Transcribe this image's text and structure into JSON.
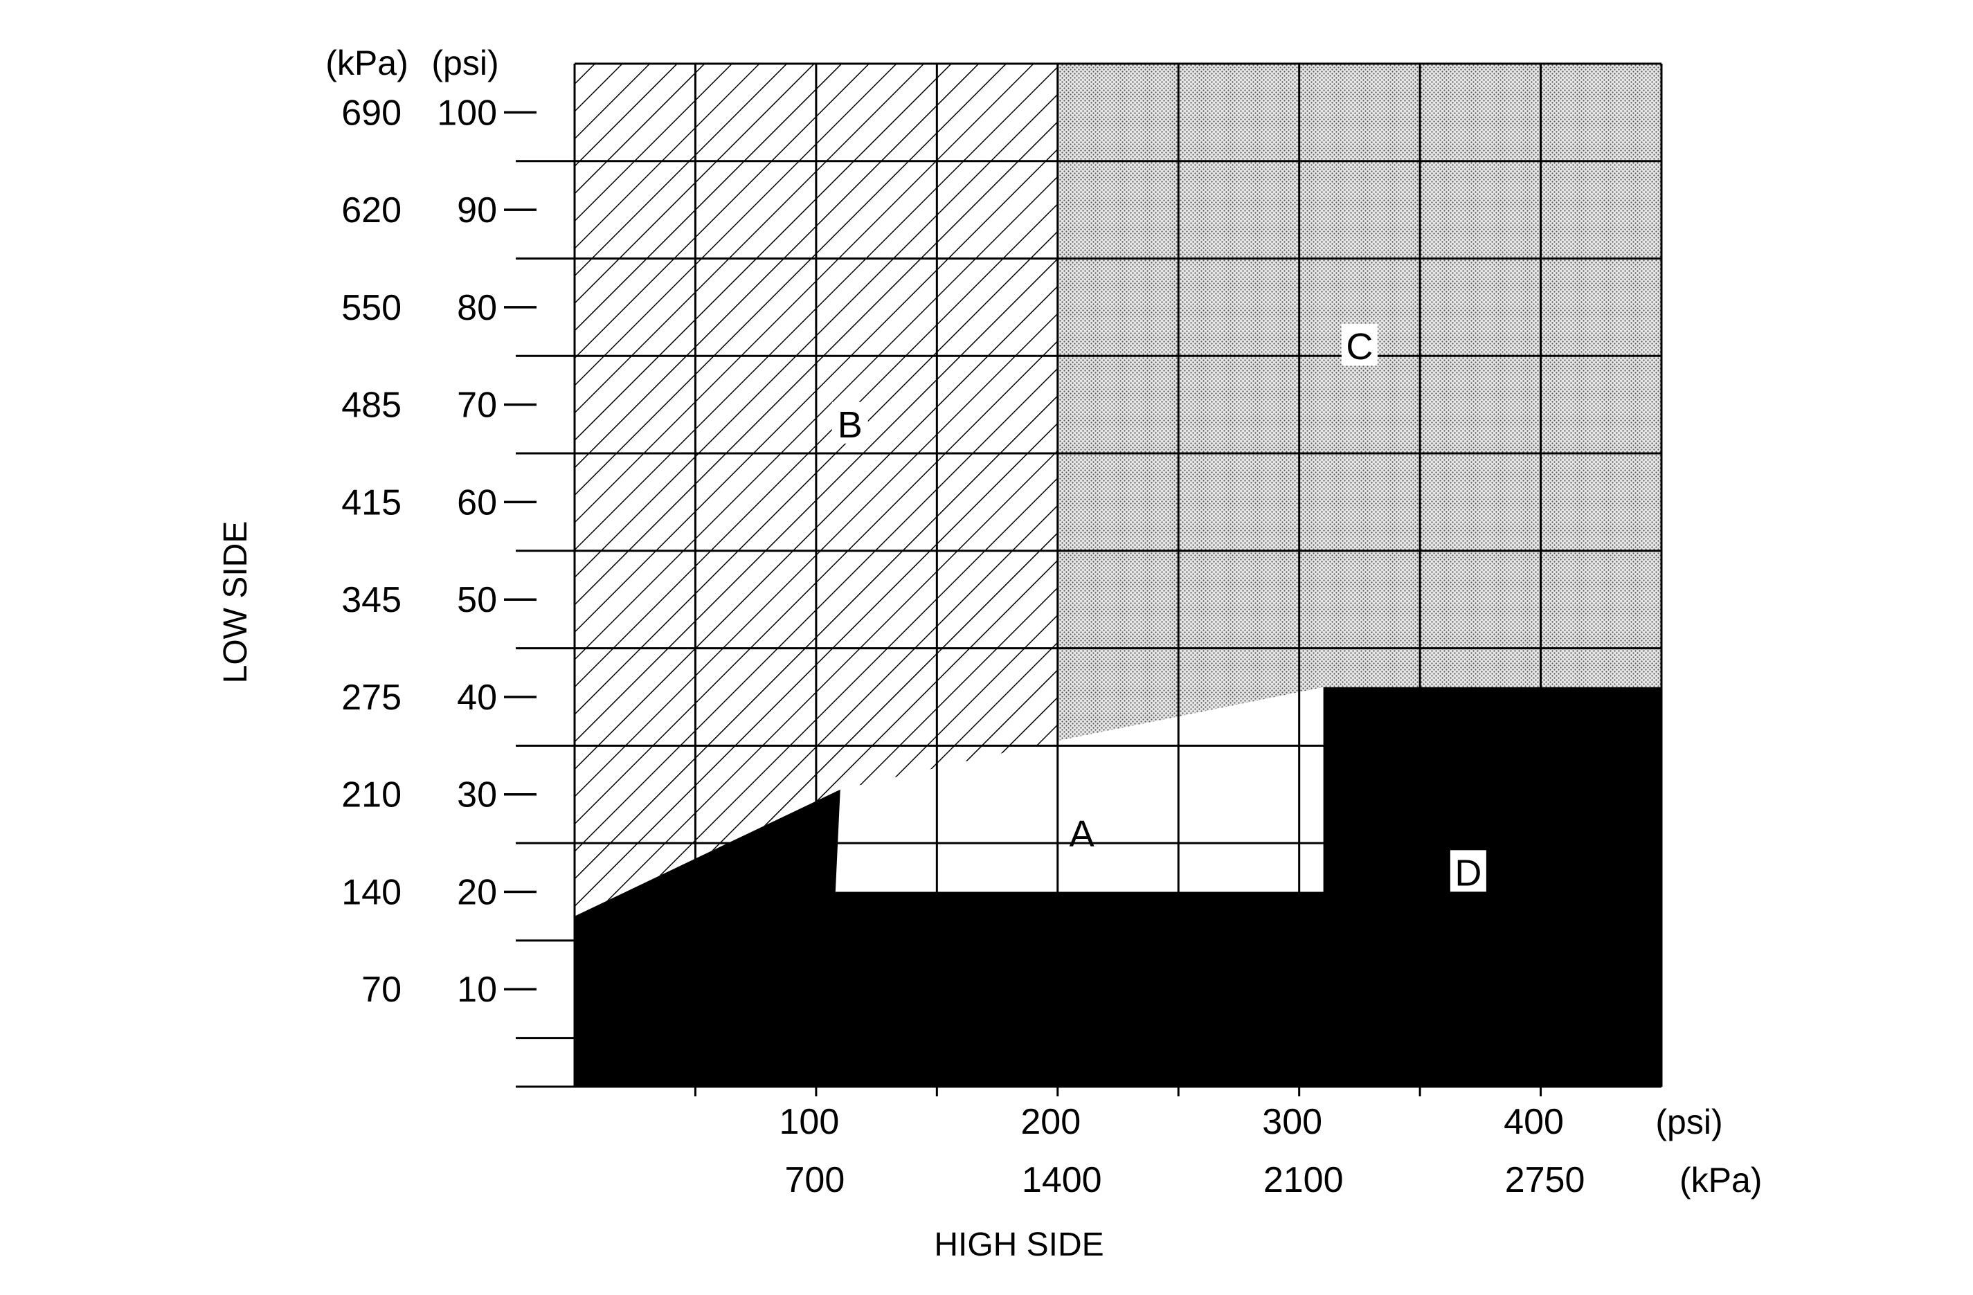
{
  "chart_data": {
    "type": "area",
    "axes": {
      "y": {
        "title": "LOW SIDE",
        "units": {
          "primary": "(psi)",
          "secondary": "(kPa)"
        },
        "ticks_psi": [
          100,
          90,
          80,
          70,
          60,
          50,
          40,
          30,
          20,
          10
        ],
        "ticks_kpa": [
          690,
          620,
          550,
          485,
          415,
          345,
          275,
          210,
          140,
          70
        ],
        "range_psi": [
          0,
          100
        ]
      },
      "x": {
        "title": "HIGH SIDE",
        "units": {
          "primary": "(psi)",
          "secondary": "(kPa)"
        },
        "ticks_psi": [
          100,
          200,
          300,
          400
        ],
        "ticks_kpa": [
          700,
          1400,
          2100,
          2750
        ],
        "range_psi": [
          0,
          450
        ]
      }
    },
    "grid": true,
    "regions": [
      {
        "label": "A",
        "fill": "white",
        "polygon_psi": [
          [
            110,
            30.5
          ],
          [
            200,
            35.5
          ],
          [
            310,
            40.5
          ],
          [
            310,
            20
          ],
          [
            108,
            20
          ]
        ]
      },
      {
        "label": "B",
        "fill": "diagonal-hatch",
        "polygon_psi": [
          [
            0,
            105
          ],
          [
            200,
            105
          ],
          [
            200,
            35.5
          ],
          [
            110,
            30.5
          ],
          [
            0,
            17.5
          ]
        ]
      },
      {
        "label": "C",
        "fill": "stipple",
        "polygon_psi": [
          [
            200,
            105
          ],
          [
            450,
            105
          ],
          [
            450,
            41
          ],
          [
            310,
            41
          ],
          [
            200,
            35.5
          ]
        ]
      },
      {
        "label": "D",
        "fill": "black",
        "polygon_psi": [
          [
            0,
            17.5
          ],
          [
            110,
            30.5
          ],
          [
            108,
            20
          ],
          [
            310,
            20
          ],
          [
            310,
            41
          ],
          [
            450,
            41
          ],
          [
            450,
            0
          ],
          [
            0,
            0
          ]
        ]
      }
    ],
    "colors": {
      "ink": "#000000",
      "paper": "#ffffff",
      "stipple": "#d6d6d6"
    }
  }
}
